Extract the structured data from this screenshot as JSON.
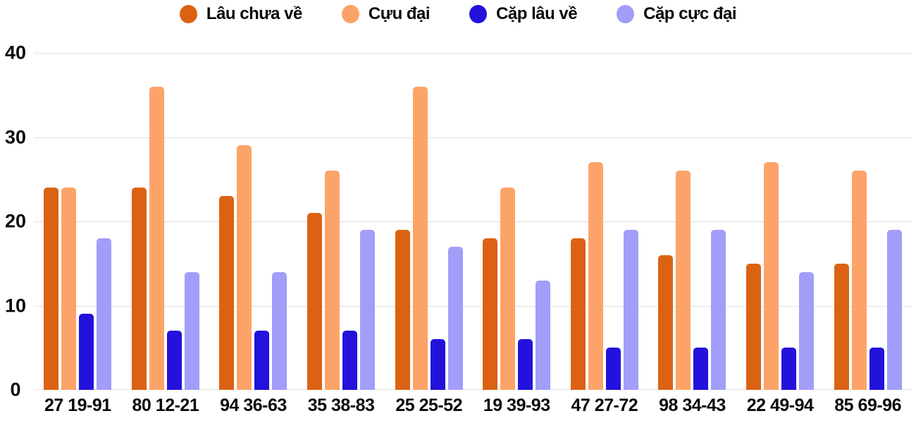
{
  "colors": {
    "background": "#ffffff",
    "grid": "#e2e2e2",
    "text": "#0a0a0a"
  },
  "chart_data": {
    "type": "bar",
    "title": "",
    "xlabel": "",
    "ylabel": "",
    "ylim": [
      0,
      40
    ],
    "y_ticks": [
      0,
      10,
      20,
      30,
      40
    ],
    "grid": true,
    "legend_position": "top",
    "categories": [
      "27 19-91",
      "80 12-21",
      "94 36-63",
      "35 38-83",
      "25 25-52",
      "19 39-93",
      "47 27-72",
      "98 34-43",
      "22 49-94",
      "85 69-96"
    ],
    "series": [
      {
        "name": "Lâu chưa về",
        "color": "#dc6213",
        "values": [
          24,
          24,
          23,
          21,
          19,
          18,
          18,
          16,
          15,
          15
        ]
      },
      {
        "name": "Cựu đại",
        "color": "#fca369",
        "values": [
          24,
          36,
          29,
          26,
          36,
          24,
          27,
          26,
          27,
          26
        ]
      },
      {
        "name": "Cặp lâu về",
        "color": "#2312db",
        "values": [
          9,
          7,
          7,
          7,
          6,
          6,
          5,
          5,
          5,
          5
        ]
      },
      {
        "name": "Cặp cực đại",
        "color": "#a29df8",
        "values": [
          18,
          14,
          14,
          19,
          17,
          13,
          19,
          19,
          14,
          19
        ]
      }
    ]
  }
}
